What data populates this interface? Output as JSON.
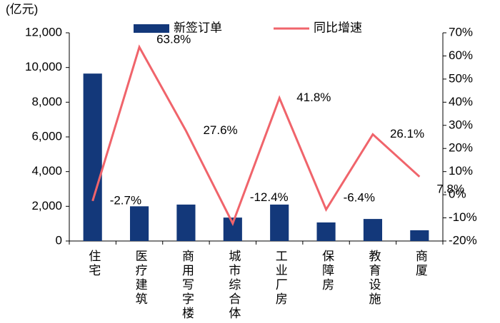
{
  "chart_data": {
    "type": "bar",
    "y_label": "(亿元)",
    "categories": [
      "住宅",
      "医疗建筑",
      "商用写字楼",
      "城市综合体",
      "工业厂房",
      "保障房",
      "教育设施",
      "商厦"
    ],
    "series": [
      {
        "name": "新签订单",
        "type": "bar",
        "color": "#13387a",
        "values": [
          9650,
          2000,
          2100,
          1350,
          2100,
          1070,
          1270,
          620
        ]
      },
      {
        "name": "同比增速",
        "type": "line",
        "axis": "y2",
        "color": "#f0646b",
        "values": [
          -2.7,
          63.8,
          27.6,
          -12.4,
          41.8,
          -6.4,
          26.1,
          7.8
        ],
        "value_labels": [
          "-2.7%",
          "63.8%",
          "27.6%",
          "-12.4%",
          "41.8%",
          "-6.4%",
          "26.1%",
          "7.8%"
        ]
      }
    ],
    "ylim": [
      0,
      12000
    ],
    "yticks": [
      0,
      {
        "value": 2000,
        "label": "2,000"
      },
      {
        "value": 4000,
        "label": "4,000"
      },
      {
        "value": 6000,
        "label": "6,000"
      },
      {
        "value": 8000,
        "label": "8,000"
      },
      {
        "value": 10000,
        "label": "10,000"
      },
      {
        "value": 12000,
        "label": "12,000"
      }
    ],
    "y2lim": [
      -20,
      70
    ],
    "y2ticks": [
      {
        "value": -20,
        "label": "-20%"
      },
      {
        "value": -10,
        "label": "-10%"
      },
      {
        "value": 0,
        "label": "0%"
      },
      {
        "value": 10,
        "label": "10%"
      },
      {
        "value": 20,
        "label": "20%"
      },
      {
        "value": 30,
        "label": "30%"
      },
      {
        "value": 40,
        "label": "40%"
      },
      {
        "value": 50,
        "label": "50%"
      },
      {
        "value": 60,
        "label": "60%"
      },
      {
        "value": 70,
        "label": "70%"
      }
    ]
  }
}
